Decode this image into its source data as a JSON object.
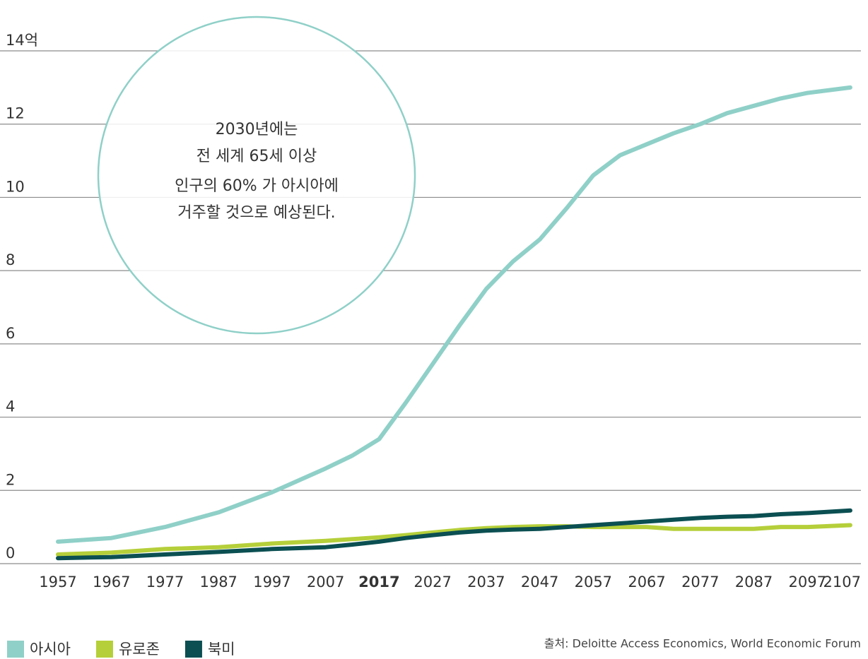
{
  "chart_data": {
    "type": "line",
    "annotation": [
      "2030년에는",
      "전 세계 65세 이상",
      "인구의 60% 가 아시아에",
      "거주할 것으로 예상된다."
    ],
    "source": "출처: Deloitte Access Economics, World Economic Forum",
    "x": [
      1957,
      1967,
      1977,
      1987,
      1997,
      2007,
      2012,
      2017,
      2022,
      2027,
      2032,
      2037,
      2042,
      2047,
      2052,
      2057,
      2062,
      2067,
      2072,
      2077,
      2082,
      2087,
      2092,
      2097,
      2105
    ],
    "series": [
      {
        "name": "아시아",
        "color": "#8fd0c8",
        "values": [
          0.6,
          0.7,
          1.0,
          1.4,
          1.95,
          2.6,
          2.95,
          3.4,
          4.4,
          5.45,
          6.5,
          7.5,
          8.25,
          8.85,
          9.7,
          10.6,
          11.15,
          11.45,
          11.75,
          12.0,
          12.3,
          12.5,
          12.7,
          12.85,
          13.0
        ]
      },
      {
        "name": "유로존",
        "color": "#b5cf3a",
        "values": [
          0.25,
          0.3,
          0.4,
          0.45,
          0.55,
          0.62,
          0.67,
          0.72,
          0.78,
          0.85,
          0.92,
          0.97,
          1.0,
          1.02,
          1.02,
          1.0,
          1.0,
          1.0,
          0.95,
          0.95,
          0.95,
          0.95,
          1.0,
          1.0,
          1.05
        ]
      },
      {
        "name": "북미",
        "color": "#0b4f52",
        "values": [
          0.15,
          0.18,
          0.25,
          0.32,
          0.4,
          0.45,
          0.52,
          0.6,
          0.7,
          0.78,
          0.85,
          0.9,
          0.93,
          0.95,
          1.0,
          1.05,
          1.1,
          1.15,
          1.2,
          1.25,
          1.28,
          1.3,
          1.35,
          1.38,
          1.45
        ]
      }
    ],
    "xlim": [
      1957,
      2107
    ],
    "xticks": [
      1957,
      1967,
      1977,
      1987,
      1997,
      2007,
      2017,
      2027,
      2037,
      2047,
      2057,
      2067,
      2077,
      2087,
      2097,
      2107
    ],
    "ylim": [
      0,
      14
    ],
    "yticks": [
      0,
      2,
      4,
      6,
      8,
      10,
      12,
      {
        "value": 14,
        "label": "14억"
      }
    ],
    "grid": true
  }
}
